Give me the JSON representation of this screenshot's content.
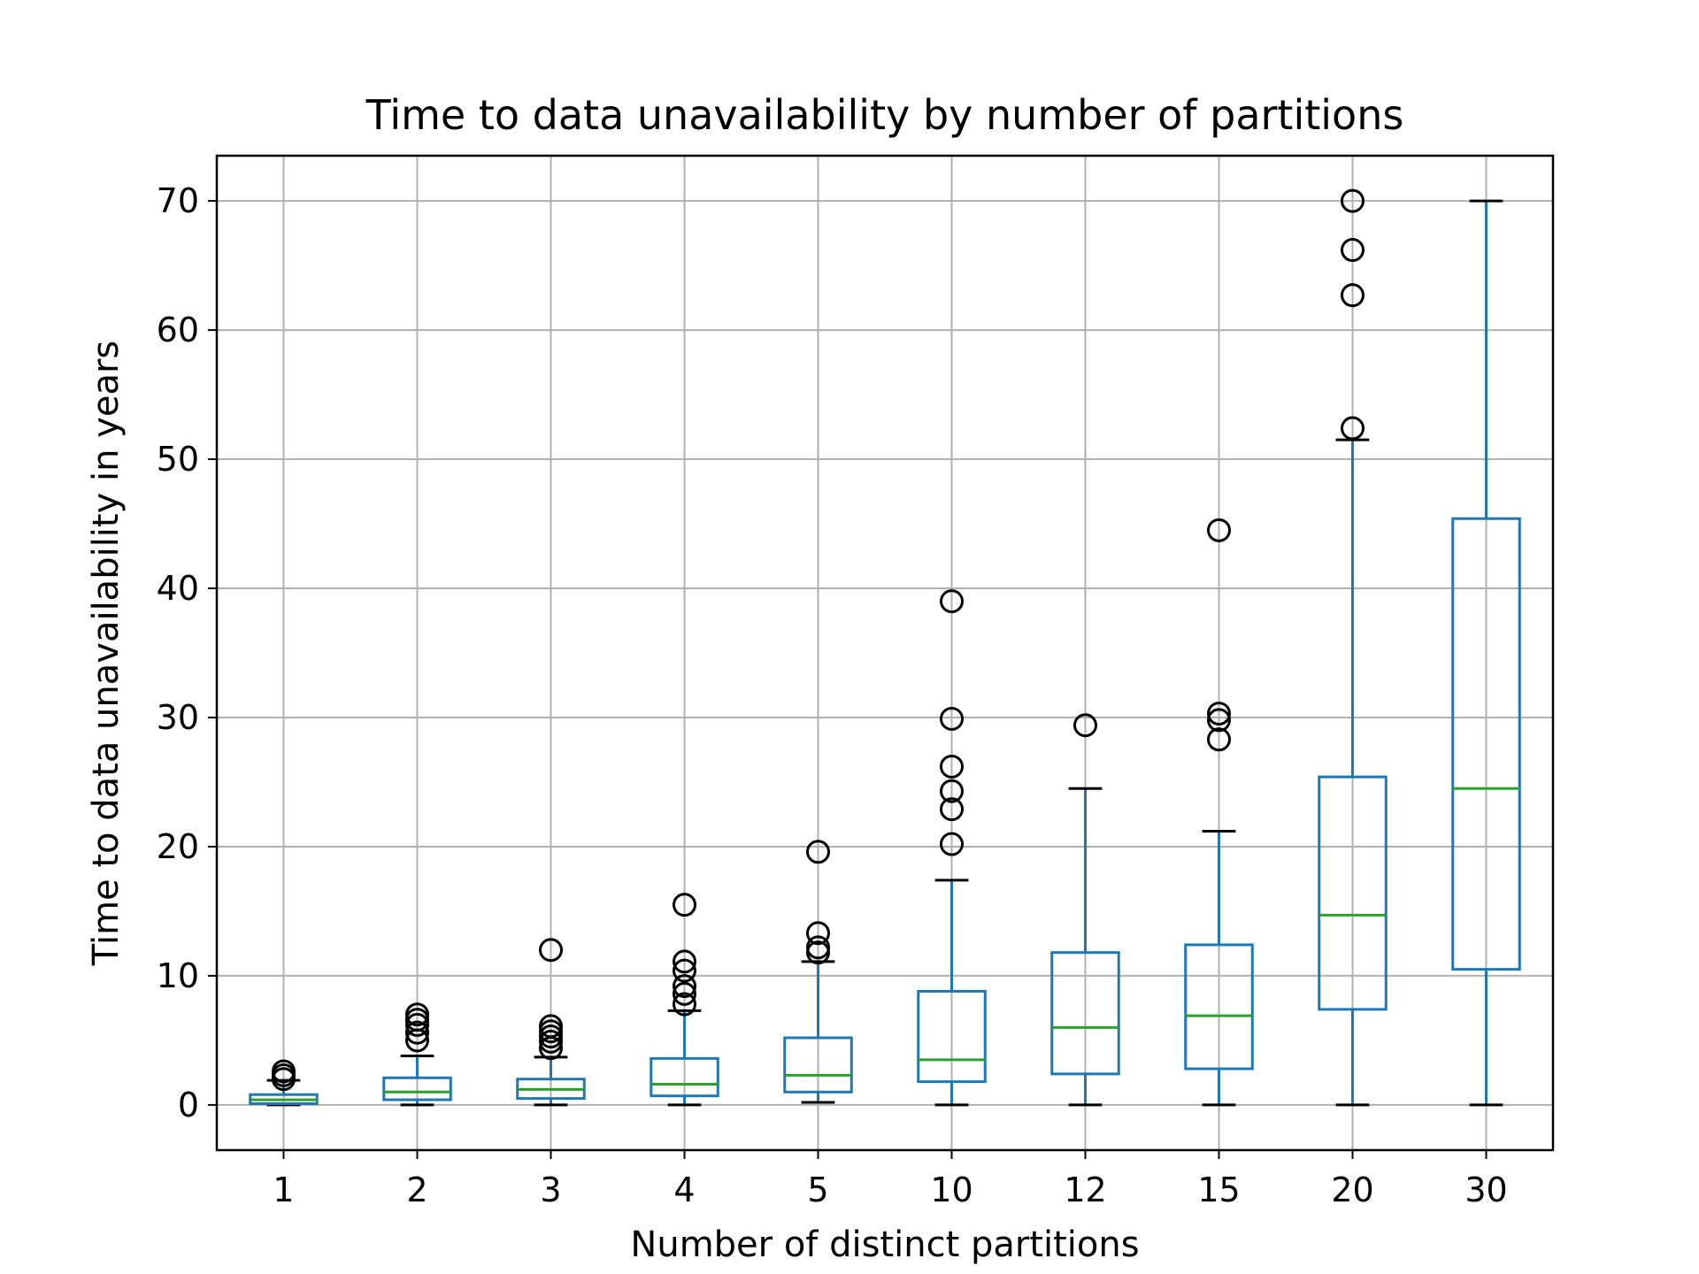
{
  "chart_data": {
    "type": "box",
    "title": "Time to data unavailability by number of partitions",
    "xlabel": "Number of distinct partitions",
    "ylabel": "Time to data unavailability in years",
    "ylim": [
      -3.5,
      73.5
    ],
    "yticks": [
      0,
      10,
      20,
      30,
      40,
      50,
      60,
      70
    ],
    "grid": true,
    "categories": [
      "1",
      "2",
      "3",
      "4",
      "5",
      "10",
      "12",
      "15",
      "20",
      "30"
    ],
    "boxes": [
      {
        "category": "1",
        "whisker_low": 0.0,
        "q1": 0.1,
        "median": 0.4,
        "q3": 0.8,
        "whisker_high": 1.9,
        "outliers": [
          2.0,
          2.3,
          2.6
        ]
      },
      {
        "category": "2",
        "whisker_low": 0.0,
        "q1": 0.4,
        "median": 1.0,
        "q3": 2.1,
        "whisker_high": 3.8,
        "outliers": [
          5.0,
          5.6,
          6.2,
          6.6,
          7.0
        ]
      },
      {
        "category": "3",
        "whisker_low": 0.0,
        "q1": 0.5,
        "median": 1.2,
        "q3": 2.0,
        "whisker_high": 3.7,
        "outliers": [
          4.4,
          4.9,
          5.3,
          5.7,
          6.1,
          12.0
        ]
      },
      {
        "category": "4",
        "whisker_low": 0.0,
        "q1": 0.7,
        "median": 1.6,
        "q3": 3.6,
        "whisker_high": 7.3,
        "outliers": [
          7.8,
          8.6,
          9.2,
          10.4,
          11.1,
          15.5
        ]
      },
      {
        "category": "5",
        "whisker_low": 0.2,
        "q1": 1.0,
        "median": 2.3,
        "q3": 5.2,
        "whisker_high": 11.1,
        "outliers": [
          11.8,
          12.2,
          13.3,
          19.6
        ]
      },
      {
        "category": "10",
        "whisker_low": 0.0,
        "q1": 1.8,
        "median": 3.5,
        "q3": 8.8,
        "whisker_high": 17.4,
        "outliers": [
          20.2,
          22.9,
          24.3,
          26.2,
          29.9,
          39.0
        ]
      },
      {
        "category": "12",
        "whisker_low": 0.0,
        "q1": 2.4,
        "median": 6.0,
        "q3": 11.8,
        "whisker_high": 24.5,
        "outliers": [
          29.4
        ]
      },
      {
        "category": "15",
        "whisker_low": 0.0,
        "q1": 2.8,
        "median": 6.9,
        "q3": 12.4,
        "whisker_high": 21.2,
        "outliers": [
          28.3,
          29.8,
          30.3,
          44.5
        ]
      },
      {
        "category": "20",
        "whisker_low": 0.0,
        "q1": 7.4,
        "median": 14.7,
        "q3": 25.4,
        "whisker_high": 51.5,
        "outliers": [
          52.4,
          62.7,
          66.2,
          70.0
        ]
      },
      {
        "category": "30",
        "whisker_low": 0.0,
        "q1": 10.5,
        "median": 24.5,
        "q3": 45.4,
        "whisker_high": 70.0,
        "outliers": []
      }
    ],
    "colors": {
      "box": "#1f77b4",
      "median": "#2ca02c",
      "cap": "#000000",
      "outlier": "#000000",
      "grid": "#b0b0b0",
      "frame": "#000000"
    }
  }
}
